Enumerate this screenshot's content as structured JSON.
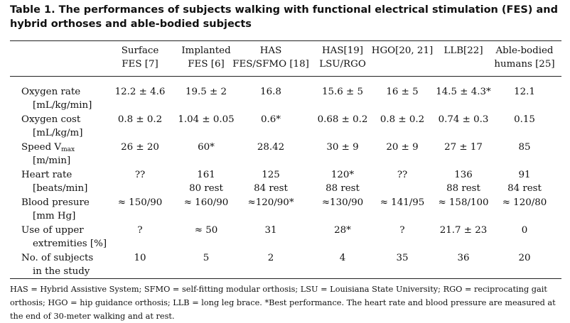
{
  "caption": "Table 1. The performances of subjects walking with functional electrical stimulation (FES) and hybrid orthoses and able-bodied subjects",
  "columns": [
    {
      "line1": "Surface",
      "line2": "FES [7]"
    },
    {
      "line1": "Implanted",
      "line2": "FES [6]"
    },
    {
      "line1": "HAS",
      "line2": "FES/SFMO [18]"
    },
    {
      "line1": "HAS[19]",
      "line2": "LSU/RGO"
    },
    {
      "line1": "HGO[20, 21]",
      "line2": ""
    },
    {
      "line1": "LLB[22]",
      "line2": ""
    },
    {
      "line1": "Able-bodied",
      "line2": "humans [25]"
    }
  ],
  "rows": [
    {
      "label1": "Oxygen rate",
      "label2": "[mL/kg/min]",
      "values": [
        "12.2 ± 4.6",
        "19.5 ± 2",
        "16.8",
        "15.6 ± 5",
        "16 ± 5",
        "14.5 ± 4.3*",
        "12.1"
      ],
      "values2": [
        "",
        "",
        "",
        "",
        "",
        "",
        ""
      ]
    },
    {
      "label1": "Oxygen cost",
      "label2": "[mL/kg/m]",
      "values": [
        "0.8 ± 0.2",
        "1.04 ± 0.05",
        "0.6*",
        "0.68 ± 0.2",
        "0.8 ± 0.2",
        "0.74 ± 0.3",
        "0.15"
      ],
      "values2": [
        "",
        "",
        "",
        "",
        "",
        "",
        ""
      ]
    },
    {
      "label1": "Speed V",
      "label1_sub": "max",
      "label2": "[m/min]",
      "values": [
        "26 ± 20",
        "60*",
        "28.42",
        "30 ± 9",
        "20 ± 9",
        "27 ± 17",
        "85"
      ],
      "values2": [
        "",
        "",
        "",
        "",
        "",
        "",
        ""
      ]
    },
    {
      "label1": "Heart rate",
      "label2": "[beats/min]",
      "values": [
        "??",
        "161",
        "125",
        "120*",
        "??",
        "136",
        "91"
      ],
      "values2": [
        "",
        "80 rest",
        "84 rest",
        "88 rest",
        "",
        "88 rest",
        "84 rest"
      ]
    },
    {
      "label1": "Blood presure",
      "label2": "[mm Hg]",
      "values": [
        "≈ 150/90",
        "≈ 160/90",
        "≈120/90*",
        "≈130/90",
        "≈ 141/95",
        "≈ 158/100",
        "≈ 120/80"
      ],
      "values2": [
        "",
        "",
        "",
        "",
        "",
        "",
        ""
      ]
    },
    {
      "label1": "Use of upper",
      "label2": "extremities [%]",
      "values": [
        "?",
        "≈ 50",
        "31",
        "28*",
        "?",
        "21.7 ± 23",
        "0"
      ],
      "values2": [
        "",
        "",
        "",
        "",
        "",
        "",
        ""
      ]
    },
    {
      "label1": "No. of subjects",
      "label2": "in the study",
      "values": [
        "10",
        "5",
        "2",
        "4",
        "35",
        "36",
        "20"
      ],
      "values2": [
        "",
        "",
        "",
        "",
        "",
        "",
        ""
      ]
    }
  ],
  "footnote": "HAS = Hybrid Assistive System; SFMO = self-fitting modular orthosis; LSU = Louisiana State University; RGO = reciprocating gait orthosis; HGO = hip guidance orthosis; LLB = long leg brace. *Best performance. The heart rate and blood pressure are measured at the end of 30-meter walking and at rest."
}
